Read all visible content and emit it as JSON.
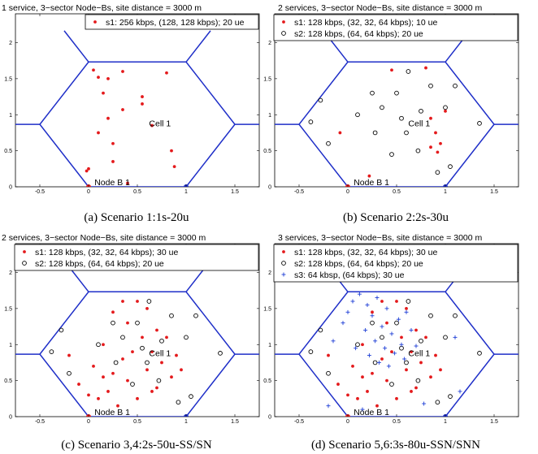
{
  "chart_data": [
    {
      "type": "scatter",
      "title": "1 service, 3−sector Node−Bs, site distance = 3000 m",
      "caption": "(a)  Scenario 1:1s-20u",
      "xlim": [
        -0.75,
        1.75
      ],
      "ylim": [
        0,
        2.4
      ],
      "xticks": [
        -0.5,
        0,
        0.5,
        1,
        1.5
      ],
      "xtick_labels": [
        "-0.5",
        "0",
        "0.5",
        "1",
        "1.5"
      ],
      "yticks": [
        0,
        0.5,
        1,
        1.5,
        2
      ],
      "ytick_labels": [
        "0",
        "0.5",
        "1",
        "1.5",
        "2"
      ],
      "annotations": {
        "cell": "Cell 1",
        "node": "Node B 1"
      },
      "series": [
        {
          "name": "s1: 256 kbps, (128, 128 kbps); 20 ue",
          "marker": "dot",
          "color": "#e41a1c",
          "x": [
            0.05,
            0.1,
            0.1,
            0.15,
            0.2,
            0.2,
            0.25,
            0.25,
            0.35,
            0.35,
            0.4,
            0.55,
            0.55,
            0.65,
            0.8,
            0.85,
            0.88,
            0.0,
            -0.02,
            0.0
          ],
          "y": [
            1.62,
            1.52,
            0.75,
            1.3,
            1.5,
            0.95,
            0.6,
            0.35,
            1.6,
            1.07,
            0.05,
            1.25,
            1.15,
            0.85,
            1.58,
            0.5,
            0.28,
            0.25,
            0.22,
            0.0
          ]
        }
      ]
    },
    {
      "type": "scatter",
      "title": "2 services, 3−sector Node−Bs, site distance = 3000 m",
      "caption": "(b)  Scenario 2:2s-30u",
      "xlim": [
        -0.75,
        1.75
      ],
      "ylim": [
        0,
        2.4
      ],
      "xticks": [
        -0.5,
        0,
        0.5,
        1,
        1.5
      ],
      "xtick_labels": [
        "-0.5",
        "0",
        "0.5",
        "1",
        "1.5"
      ],
      "yticks": [
        0,
        0.5,
        1,
        1.5,
        2
      ],
      "ytick_labels": [
        "0",
        "0.5",
        "1",
        "1.5",
        "2"
      ],
      "annotations": {
        "cell": "Cell 1",
        "node": "Node B 1"
      },
      "series": [
        {
          "name": "s1: 128 kbps, (32, 32, 64 kbps); 10 ue",
          "marker": "dot",
          "color": "#e41a1c",
          "x": [
            -0.08,
            0.22,
            0.45,
            0.8,
            0.85,
            0.85,
            0.9,
            0.92,
            0.95,
            1.0
          ],
          "y": [
            0.75,
            0.15,
            1.62,
            1.65,
            0.95,
            0.55,
            0.75,
            0.48,
            0.6,
            1.05
          ]
        },
        {
          "name": "s2: 128 kbps, (64, 64 kbps); 20 ue",
          "marker": "circle",
          "color": "#000000",
          "x": [
            -0.28,
            -0.38,
            -0.2,
            0.1,
            0.25,
            0.28,
            0.35,
            0.45,
            0.5,
            0.55,
            0.6,
            0.62,
            0.72,
            0.75,
            0.85,
            0.92,
            1.0,
            1.05,
            1.1,
            1.35
          ],
          "y": [
            1.2,
            0.9,
            0.6,
            1.0,
            1.3,
            0.75,
            1.1,
            0.45,
            1.3,
            0.95,
            0.75,
            1.6,
            0.5,
            1.05,
            1.4,
            0.2,
            1.1,
            0.28,
            1.4,
            0.88
          ]
        }
      ]
    },
    {
      "type": "scatter",
      "title": "2 services, 3−sector Node−Bs, site distance = 3000 m",
      "caption": "(c)  Scenario 3,4:2s-50u-SS/SN",
      "xlim": [
        -0.75,
        1.75
      ],
      "ylim": [
        0,
        2.4
      ],
      "xticks": [
        -0.5,
        0,
        0.5,
        1,
        1.5
      ],
      "xtick_labels": [
        "-0.5",
        "0",
        "0.5",
        "1",
        "1.5"
      ],
      "yticks": [
        0,
        0.5,
        1,
        1.5,
        2
      ],
      "ytick_labels": [
        "0",
        "0.5",
        "1",
        "1.5",
        "2"
      ],
      "annotations": {
        "cell": "Cell 1",
        "node": "Node B 1"
      },
      "series": [
        {
          "name": "s1: 128 kbps, (32, 32, 64 kbps); 30 ue",
          "marker": "dot",
          "color": "#e41a1c",
          "x": [
            -0.2,
            -0.1,
            0.0,
            0.05,
            0.1,
            0.15,
            0.15,
            0.2,
            0.25,
            0.25,
            0.3,
            0.35,
            0.35,
            0.4,
            0.4,
            0.45,
            0.5,
            0.5,
            0.55,
            0.6,
            0.6,
            0.65,
            0.65,
            0.7,
            0.7,
            0.75,
            0.8,
            0.85,
            0.9,
            0.95
          ],
          "y": [
            0.85,
            0.45,
            0.3,
            0.7,
            0.25,
            0.55,
            1.0,
            0.35,
            1.45,
            0.6,
            0.15,
            1.6,
            0.8,
            1.3,
            0.5,
            0.9,
            1.6,
            0.25,
            1.1,
            0.65,
            1.5,
            0.35,
            0.9,
            1.2,
            0.4,
            0.75,
            1.1,
            0.55,
            0.85,
            0.65
          ]
        },
        {
          "name": "s2: 128 kbps, (64, 64 kbps); 20 ue",
          "marker": "circle",
          "color": "#000000",
          "x": [
            -0.28,
            -0.38,
            -0.2,
            0.1,
            0.25,
            0.28,
            0.35,
            0.45,
            0.5,
            0.55,
            0.6,
            0.62,
            0.72,
            0.75,
            0.85,
            0.92,
            1.0,
            1.05,
            1.1,
            1.35
          ],
          "y": [
            1.2,
            0.9,
            0.6,
            1.0,
            1.3,
            0.75,
            1.1,
            0.45,
            1.3,
            0.95,
            0.75,
            1.6,
            0.5,
            1.05,
            1.4,
            0.2,
            1.1,
            0.28,
            1.4,
            0.88
          ]
        }
      ]
    },
    {
      "type": "scatter",
      "title": "3 services, 3−sector Node−Bs, site distance = 3000 m",
      "caption": "(d)  Scenario 5,6:3s-80u-SSN/SNN",
      "xlim": [
        -0.75,
        1.75
      ],
      "ylim": [
        0,
        2.4
      ],
      "xticks": [
        -0.5,
        0,
        0.5,
        1,
        1.5
      ],
      "xtick_labels": [
        "-0.5",
        "0",
        "0.5",
        "1",
        "1.5"
      ],
      "yticks": [
        0,
        0.5,
        1,
        1.5,
        2
      ],
      "ytick_labels": [
        "0",
        "0.5",
        "1",
        "1.5",
        "2"
      ],
      "annotations": {
        "cell": "Cell 1",
        "node": "Node B 1"
      },
      "series": [
        {
          "name": "s1: 128 kbps, (32, 32, 64 kbps); 30 ue",
          "marker": "dot",
          "color": "#e41a1c",
          "x": [
            -0.2,
            -0.1,
            0.0,
            0.05,
            0.1,
            0.15,
            0.15,
            0.2,
            0.25,
            0.25,
            0.3,
            0.35,
            0.35,
            0.4,
            0.4,
            0.45,
            0.5,
            0.5,
            0.55,
            0.6,
            0.6,
            0.65,
            0.65,
            0.7,
            0.7,
            0.75,
            0.8,
            0.85,
            0.9,
            0.95
          ],
          "y": [
            0.85,
            0.45,
            0.3,
            0.7,
            0.25,
            0.55,
            1.0,
            0.35,
            1.45,
            0.6,
            0.15,
            1.6,
            0.8,
            1.3,
            0.5,
            0.9,
            1.6,
            0.25,
            1.1,
            0.65,
            1.5,
            0.35,
            0.9,
            1.2,
            0.4,
            0.75,
            1.1,
            0.55,
            0.85,
            0.65
          ]
        },
        {
          "name": "s2: 128 kbps, (64, 64 kbps); 20 ue",
          "marker": "circle",
          "color": "#000000",
          "x": [
            -0.28,
            -0.38,
            -0.2,
            0.1,
            0.25,
            0.28,
            0.35,
            0.45,
            0.5,
            0.55,
            0.6,
            0.62,
            0.72,
            0.75,
            0.85,
            0.92,
            1.0,
            1.05,
            1.1,
            1.35
          ],
          "y": [
            1.2,
            0.9,
            0.6,
            1.0,
            1.3,
            0.75,
            1.1,
            0.45,
            1.3,
            0.95,
            0.75,
            1.6,
            0.5,
            1.05,
            1.4,
            0.2,
            1.1,
            0.28,
            1.4,
            0.88
          ]
        },
        {
          "name": "s3: 64 kbsp, (64 kbps); 30 ue",
          "marker": "plus",
          "color": "#1f3fd6",
          "x": [
            -0.15,
            -0.05,
            0.0,
            0.05,
            0.08,
            0.12,
            0.15,
            0.18,
            0.2,
            0.22,
            0.25,
            0.28,
            0.3,
            0.32,
            0.35,
            0.38,
            0.4,
            0.42,
            0.45,
            0.48,
            0.52,
            0.55,
            0.58,
            0.6,
            0.65,
            0.7,
            0.78,
            1.1,
            1.15,
            -0.2
          ],
          "y": [
            1.05,
            1.3,
            1.45,
            1.6,
            0.95,
            1.7,
            0.1,
            1.2,
            1.55,
            0.85,
            1.4,
            1.05,
            1.65,
            0.75,
            1.25,
            0.95,
            1.5,
            0.7,
            1.15,
            0.88,
            1.35,
            1.0,
            0.8,
            1.45,
            1.2,
            0.98,
            0.18,
            1.1,
            0.35,
            0.15
          ]
        }
      ]
    }
  ]
}
